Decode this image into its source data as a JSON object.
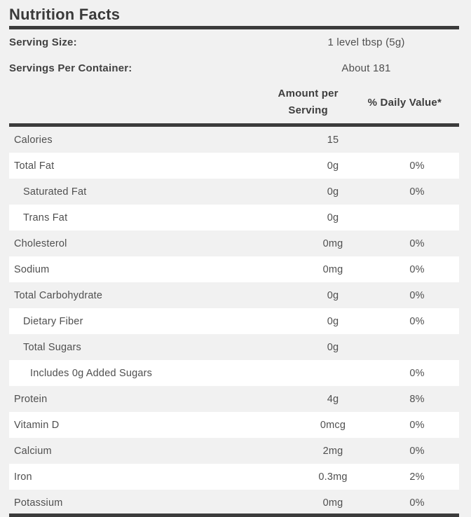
{
  "title": "Nutrition Facts",
  "serving": [
    {
      "label": "Serving Size:",
      "value": "1 level tbsp (5g)"
    },
    {
      "label": "Servings Per Container:",
      "value": "About 181"
    }
  ],
  "columns": {
    "amount_line1": "Amount per",
    "amount_line2": "Serving",
    "daily_value": "% Daily Value*"
  },
  "rows": [
    {
      "label": "Calories",
      "amount": "15",
      "dv": "",
      "indent": 0,
      "shaded": true
    },
    {
      "label": "Total Fat",
      "amount": "0g",
      "dv": "0%",
      "indent": 0,
      "shaded": false
    },
    {
      "label": "Saturated Fat",
      "amount": "0g",
      "dv": "0%",
      "indent": 1,
      "shaded": true
    },
    {
      "label": "Trans Fat",
      "amount": "0g",
      "dv": "",
      "indent": 1,
      "shaded": false
    },
    {
      "label": "Cholesterol",
      "amount": "0mg",
      "dv": "0%",
      "indent": 0,
      "shaded": true
    },
    {
      "label": "Sodium",
      "amount": "0mg",
      "dv": "0%",
      "indent": 0,
      "shaded": false
    },
    {
      "label": "Total Carbohydrate",
      "amount": "0g",
      "dv": "0%",
      "indent": 0,
      "shaded": true
    },
    {
      "label": "Dietary Fiber",
      "amount": "0g",
      "dv": "0%",
      "indent": 1,
      "shaded": false
    },
    {
      "label": "Total Sugars",
      "amount": "0g",
      "dv": "",
      "indent": 1,
      "shaded": true
    },
    {
      "label": "Includes 0g Added Sugars",
      "amount": "",
      "dv": "0%",
      "indent": 2,
      "shaded": false
    },
    {
      "label": "Protein",
      "amount": "4g",
      "dv": "8%",
      "indent": 0,
      "shaded": true
    },
    {
      "label": "Vitamin D",
      "amount": "0mcg",
      "dv": "0%",
      "indent": 0,
      "shaded": false
    },
    {
      "label": "Calcium",
      "amount": "2mg",
      "dv": "0%",
      "indent": 0,
      "shaded": true
    },
    {
      "label": "Iron",
      "amount": "0.3mg",
      "dv": "2%",
      "indent": 0,
      "shaded": false
    },
    {
      "label": "Potassium",
      "amount": "0mg",
      "dv": "0%",
      "indent": 0,
      "shaded": true
    }
  ],
  "colors": {
    "page_background": "#f1f1f1",
    "row_highlight": "#ffffff",
    "rule": "#3b3b3b",
    "text": "#4f4f4f",
    "bold_text": "#3d3d3d"
  }
}
